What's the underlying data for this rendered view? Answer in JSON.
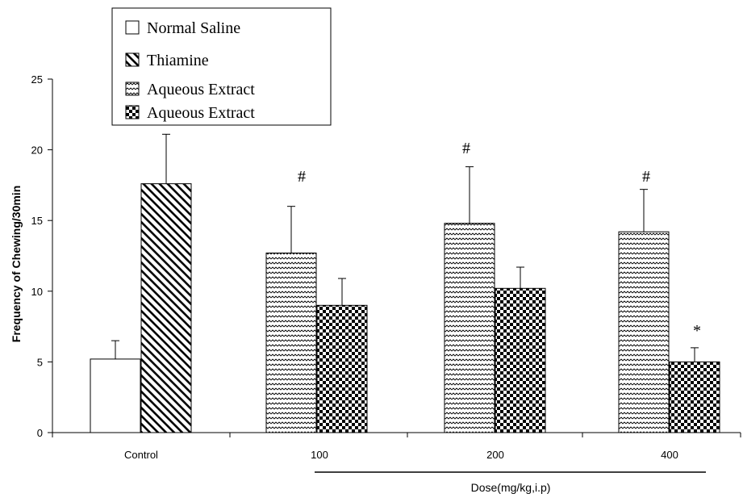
{
  "chart_data": {
    "type": "bar",
    "title": "",
    "xlabel": "Dose(mg/kg,i.p)",
    "ylabel": "Frequency of Chewing/30min",
    "ylim": [
      0,
      25
    ],
    "yticks": [
      0,
      5,
      10,
      15,
      20,
      25
    ],
    "categories": [
      "Control",
      "100",
      "200",
      "400"
    ],
    "series": [
      {
        "name": "Normal Saline",
        "pattern": "white",
        "values": [
          5.2,
          null,
          null,
          null
        ],
        "errors": [
          1.3,
          null,
          null,
          null
        ]
      },
      {
        "name": "Thiamine",
        "pattern": "diagonal-hatch",
        "values": [
          17.6,
          null,
          null,
          null
        ],
        "errors": [
          3.5,
          null,
          null,
          null
        ]
      },
      {
        "name": "Aqueous Extract",
        "pattern": "zigzag",
        "values": [
          null,
          12.7,
          14.8,
          14.2
        ],
        "errors": [
          null,
          3.3,
          4.0,
          3.0
        ]
      },
      {
        "name": "Aqueous Extract",
        "pattern": "checker",
        "values": [
          null,
          9.0,
          10.2,
          5.0
        ],
        "errors": [
          null,
          1.9,
          1.5,
          1.0
        ]
      }
    ],
    "annotations": [
      {
        "text": "#",
        "category": "100",
        "value": 18.2
      },
      {
        "text": "#",
        "category": "200",
        "value": 20.2
      },
      {
        "text": "#",
        "category": "400",
        "value": 18.2
      },
      {
        "text": "*",
        "category": "400",
        "value": 7.3
      }
    ],
    "legend": {
      "placement": "top-left",
      "entries": [
        {
          "label": "Normal Saline",
          "pattern": "white"
        },
        {
          "label": "Thiamine",
          "pattern": "diagonal-hatch"
        },
        {
          "label": "Aqueous Extract",
          "pattern": "zigzag"
        },
        {
          "label": "Aqueous Extract",
          "pattern": "checker"
        }
      ]
    },
    "grid": false,
    "colors": {
      "stroke": "#000000",
      "background": "#ffffff"
    }
  }
}
